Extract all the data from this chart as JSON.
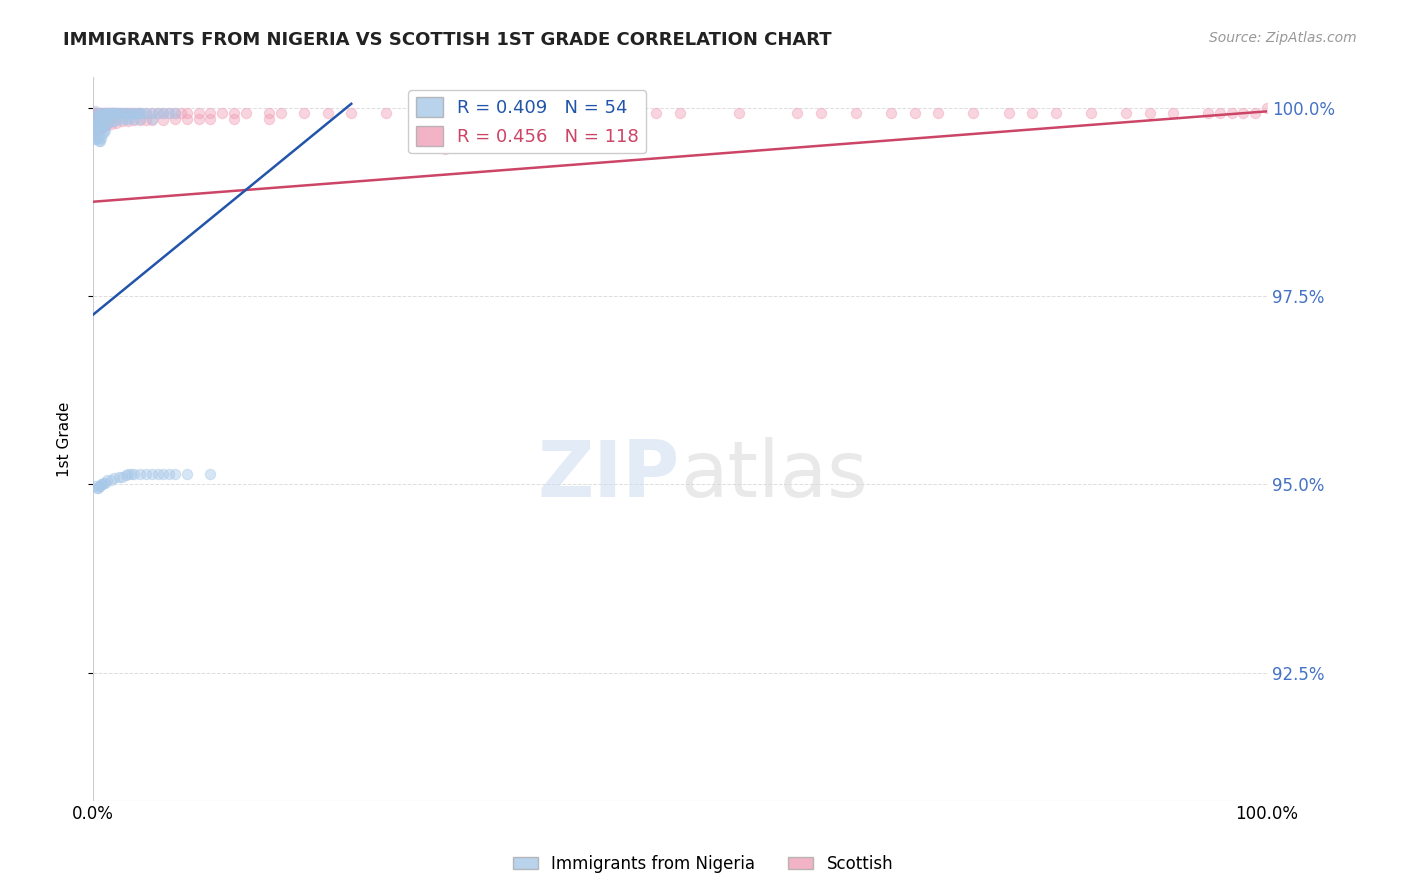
{
  "title": "IMMIGRANTS FROM NIGERIA VS SCOTTISH 1ST GRADE CORRELATION CHART",
  "source": "Source: ZipAtlas.com",
  "ylabel": "1st Grade",
  "legend_blue_r": "0.409",
  "legend_blue_n": "54",
  "legend_pink_r": "0.456",
  "legend_pink_n": "118",
  "blue_color": "#a8c8e8",
  "blue_line_color": "#2255aa",
  "pink_color": "#f0a0b8",
  "pink_line_color": "#cc4466",
  "bg_color": "#ffffff",
  "grid_color": "#dddddd",
  "xlim": [
    0.0,
    1.0
  ],
  "ylim": [
    0.908,
    1.004
  ],
  "ytick_vals": [
    0.925,
    0.95,
    0.975,
    1.0
  ],
  "ytick_labels": [
    "92.5%",
    "95.0%",
    "97.5%",
    "100.0%"
  ],
  "xtick_vals": [
    0.0,
    1.0
  ],
  "xtick_labels": [
    "0.0%",
    "100.0%"
  ],
  "scatter_size": 55,
  "scatter_alpha": 0.45,
  "blue_trend_x": [
    0.0,
    0.22
  ],
  "blue_trend_y": [
    0.9725,
    1.0005
  ],
  "pink_trend_x": [
    0.0,
    1.0
  ],
  "pink_trend_y": [
    0.9875,
    0.9995
  ],
  "blue_x": [
    0.002,
    0.003,
    0.003,
    0.004,
    0.004,
    0.005,
    0.005,
    0.006,
    0.006,
    0.007,
    0.007,
    0.008,
    0.008,
    0.009,
    0.009,
    0.01,
    0.01,
    0.011,
    0.012,
    0.013,
    0.014,
    0.015,
    0.016,
    0.017,
    0.018,
    0.019,
    0.02,
    0.021,
    0.022,
    0.024,
    0.026,
    0.028,
    0.03,
    0.032,
    0.034,
    0.036,
    0.038,
    0.04,
    0.042,
    0.045,
    0.05,
    0.055,
    0.06,
    0.065,
    0.07,
    0.002,
    0.003,
    0.004,
    0.005,
    0.006,
    0.007,
    0.008,
    0.009,
    0.01
  ],
  "blue_y": [
    0.9995,
    0.9992,
    0.9985,
    0.9988,
    0.998,
    0.999,
    0.9982,
    0.999,
    0.9985,
    0.9993,
    0.9985,
    0.9993,
    0.9988,
    0.999,
    0.9985,
    0.9993,
    0.9988,
    0.9992,
    0.9992,
    0.9993,
    0.9993,
    0.9993,
    0.9993,
    0.9993,
    0.9993,
    0.9993,
    0.9993,
    0.9993,
    0.9993,
    0.9993,
    0.9993,
    0.9993,
    0.9993,
    0.9993,
    0.9992,
    0.9993,
    0.9993,
    0.9993,
    0.9993,
    0.9993,
    0.9993,
    0.9993,
    0.9993,
    0.9993,
    0.9993,
    0.9962,
    0.996,
    0.9958,
    0.9955,
    0.9955,
    0.996,
    0.9965,
    0.9968,
    0.997
  ],
  "blue_x2": [
    0.001,
    0.001,
    0.001,
    0.002,
    0.002,
    0.003,
    0.003,
    0.004,
    0.005,
    0.005,
    0.006,
    0.007,
    0.008,
    0.009,
    0.01,
    0.012,
    0.015,
    0.018,
    0.02,
    0.025,
    0.028,
    0.03,
    0.035,
    0.04,
    0.05
  ],
  "blue_y2": [
    0.9975,
    0.9968,
    0.9958,
    0.9972,
    0.9965,
    0.998,
    0.9972,
    0.9978,
    0.998,
    0.9975,
    0.9978,
    0.9975,
    0.9978,
    0.9975,
    0.9978,
    0.998,
    0.9982,
    0.9982,
    0.9983,
    0.9985,
    0.9985,
    0.9985,
    0.9985,
    0.9985,
    0.9985
  ],
  "blue_low_x": [
    0.002,
    0.003,
    0.004,
    0.005,
    0.006,
    0.007,
    0.008,
    0.009,
    0.01,
    0.012,
    0.015,
    0.018,
    0.022,
    0.025,
    0.028,
    0.03,
    0.032,
    0.035,
    0.04,
    0.045,
    0.05,
    0.055,
    0.06,
    0.065,
    0.07,
    0.08,
    0.1
  ],
  "blue_low_y": [
    0.9498,
    0.9495,
    0.9495,
    0.9498,
    0.9498,
    0.95,
    0.95,
    0.9502,
    0.9502,
    0.9505,
    0.9505,
    0.9508,
    0.951,
    0.951,
    0.9512,
    0.9513,
    0.9513,
    0.9513,
    0.9513,
    0.9513,
    0.9513,
    0.9513,
    0.9513,
    0.9513,
    0.9513,
    0.9513,
    0.9513
  ],
  "pink_x": [
    0.001,
    0.001,
    0.001,
    0.002,
    0.002,
    0.002,
    0.003,
    0.003,
    0.003,
    0.004,
    0.004,
    0.005,
    0.005,
    0.006,
    0.006,
    0.007,
    0.007,
    0.008,
    0.008,
    0.009,
    0.009,
    0.01,
    0.01,
    0.011,
    0.012,
    0.013,
    0.014,
    0.015,
    0.015,
    0.016,
    0.017,
    0.018,
    0.018,
    0.019,
    0.02,
    0.022,
    0.025,
    0.025,
    0.028,
    0.03,
    0.032,
    0.035,
    0.038,
    0.04,
    0.045,
    0.05,
    0.055,
    0.06,
    0.065,
    0.07,
    0.075,
    0.08,
    0.09,
    0.1,
    0.11,
    0.12,
    0.13,
    0.15,
    0.16,
    0.18,
    0.2,
    0.22,
    0.25,
    0.28,
    0.3,
    0.32,
    0.35,
    0.38,
    0.4,
    0.42,
    0.45,
    0.48,
    0.5,
    0.55,
    0.6,
    0.62,
    0.65,
    0.68,
    0.7,
    0.72,
    0.75,
    0.78,
    0.8,
    0.82,
    0.85,
    0.88,
    0.9,
    0.92,
    0.95,
    0.96,
    0.97,
    0.98,
    0.99,
    1.0,
    0.001,
    0.002,
    0.003,
    0.004,
    0.005,
    0.006,
    0.007,
    0.008,
    0.009,
    0.01,
    0.012,
    0.015,
    0.02,
    0.025,
    0.03,
    0.035,
    0.04,
    0.045,
    0.05,
    0.06,
    0.07,
    0.08,
    0.09,
    0.1,
    0.12,
    0.15,
    0.3,
    0.35
  ],
  "pink_y": [
    0.9993,
    0.9985,
    0.9975,
    0.9993,
    0.9988,
    0.9978,
    0.9993,
    0.9988,
    0.998,
    0.9992,
    0.9978,
    0.9993,
    0.998,
    0.9993,
    0.9982,
    0.9993,
    0.9982,
    0.9993,
    0.9985,
    0.9993,
    0.9982,
    0.9993,
    0.9985,
    0.9993,
    0.9993,
    0.9993,
    0.9993,
    0.9993,
    0.9988,
    0.9993,
    0.9993,
    0.9993,
    0.9988,
    0.9993,
    0.9993,
    0.9993,
    0.9993,
    0.9993,
    0.9993,
    0.9993,
    0.9993,
    0.9993,
    0.9993,
    0.9993,
    0.9993,
    0.9993,
    0.9993,
    0.9993,
    0.9993,
    0.9993,
    0.9993,
    0.9993,
    0.9993,
    0.9993,
    0.9993,
    0.9993,
    0.9993,
    0.9993,
    0.9993,
    0.9993,
    0.9993,
    0.9993,
    0.9993,
    0.9993,
    0.9993,
    0.9993,
    0.9993,
    0.9993,
    0.9993,
    0.9993,
    0.9993,
    0.9993,
    0.9993,
    0.9993,
    0.9993,
    0.9993,
    0.9993,
    0.9993,
    0.9993,
    0.9993,
    0.9993,
    0.9993,
    0.9993,
    0.9993,
    0.9993,
    0.9993,
    0.9993,
    0.9993,
    0.9993,
    0.9993,
    0.9993,
    0.9993,
    0.9993,
    1.0,
    0.9972,
    0.9968,
    0.9975,
    0.9972,
    0.997,
    0.9972,
    0.9972,
    0.9975,
    0.9975,
    0.9975,
    0.9978,
    0.9978,
    0.998,
    0.9982,
    0.9982,
    0.9983,
    0.9983,
    0.9983,
    0.9983,
    0.9983,
    0.9985,
    0.9985,
    0.9985,
    0.9985,
    0.9985,
    0.9985,
    0.9945,
    0.9985
  ]
}
